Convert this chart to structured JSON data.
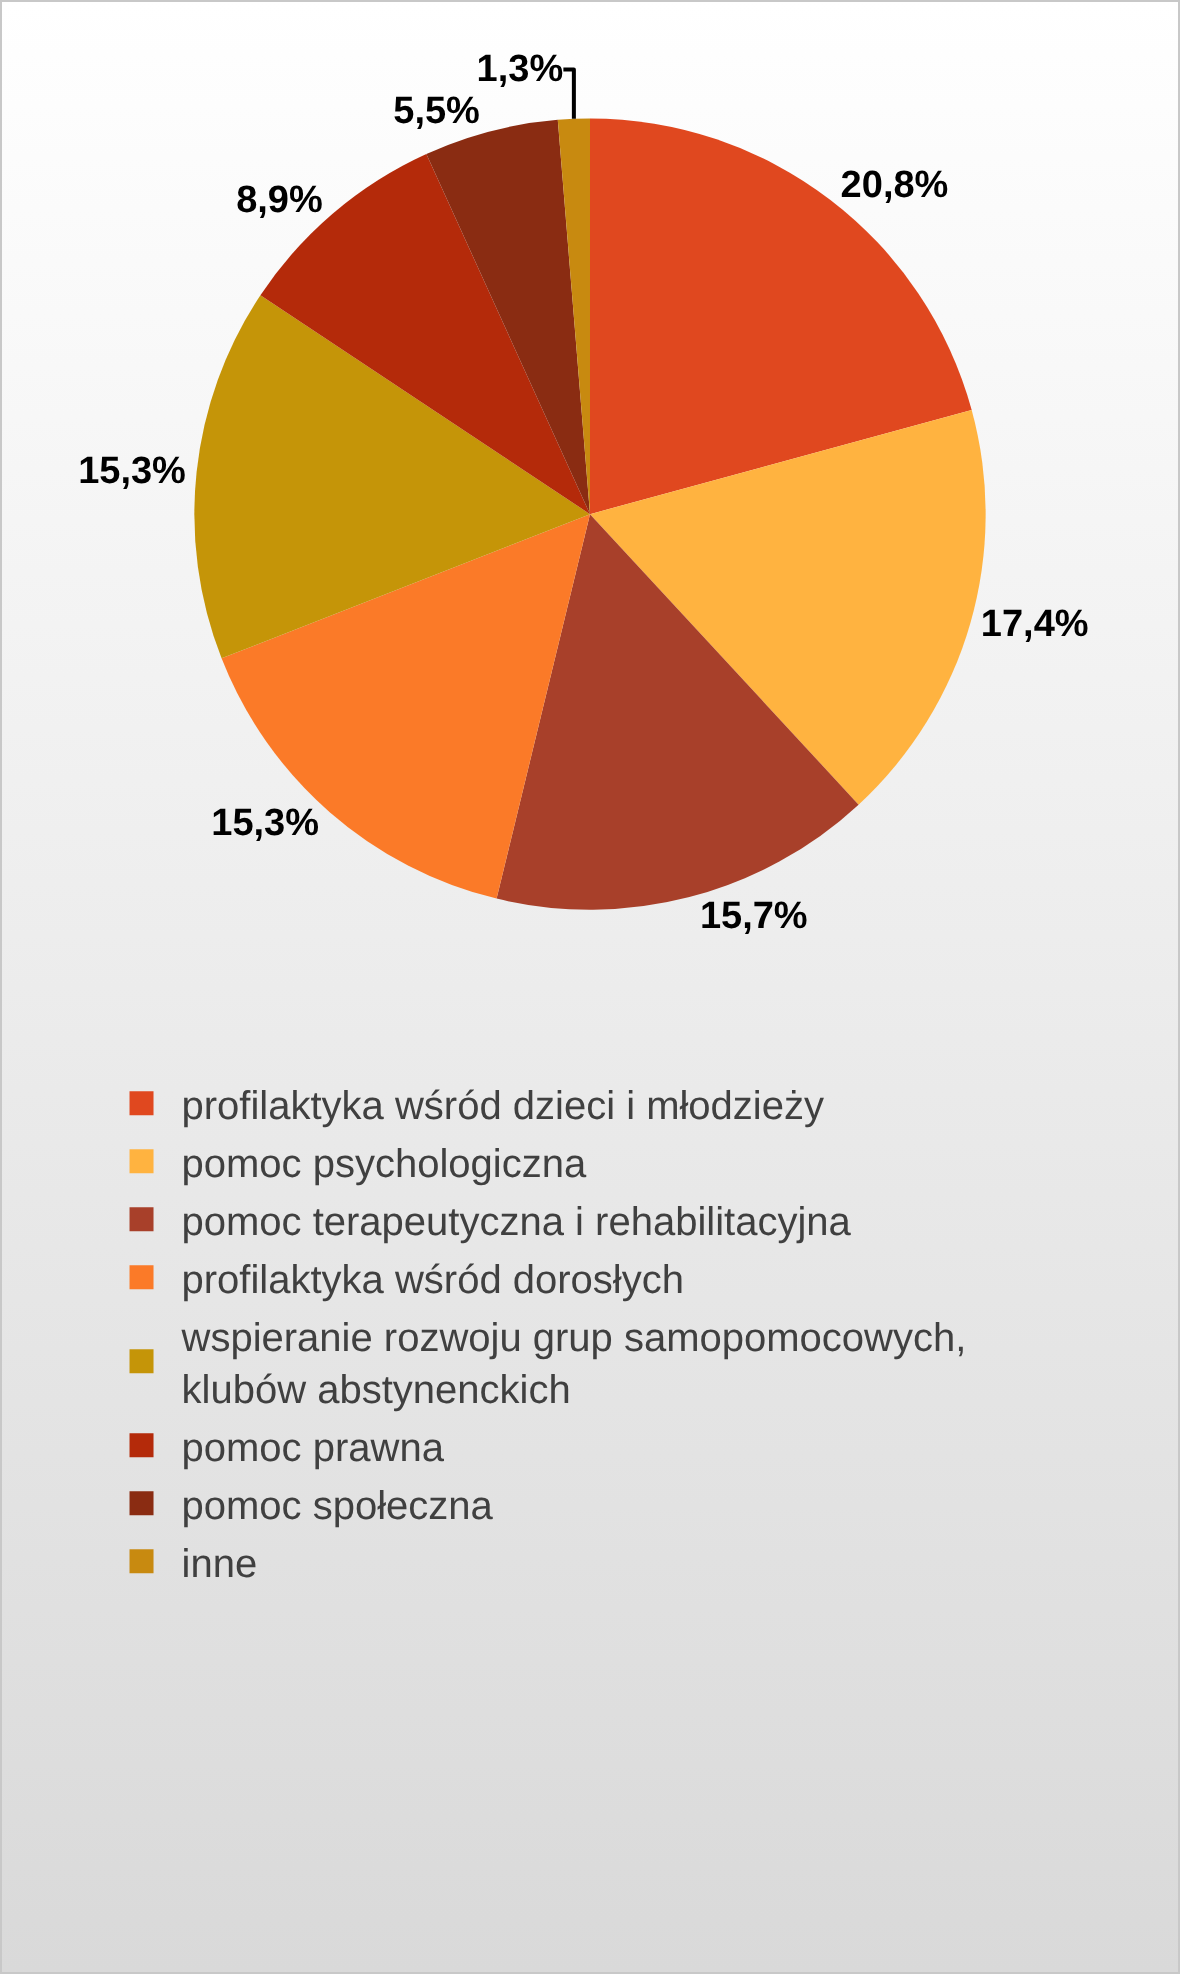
{
  "chart_data": {
    "type": "pie",
    "categories": [
      "profilaktyka wśród dzieci i młodzieży",
      "pomoc psychologiczna",
      "pomoc terapeutyczna i rehabilitacyjna",
      "profilaktyka wśród dorosłych",
      "wspieranie rozwoju grup samopomocowych, klubów abstynenckich",
      "pomoc prawna",
      "pomoc społeczna",
      "inne"
    ],
    "values": [
      20.8,
      17.4,
      15.7,
      15.3,
      15.3,
      8.9,
      5.5,
      1.3
    ],
    "value_labels": [
      "20,8%",
      "17,4%",
      "15,7%",
      "15,3%",
      "15,3%",
      "8,9%",
      "5,5%",
      "1,3%"
    ],
    "colors": [
      "#e0481f",
      "#ffb340",
      "#a8402a",
      "#fb7a28",
      "#c59508",
      "#b42a0a",
      "#8a2c12",
      "#c88a10"
    ],
    "legend": "bottom"
  }
}
